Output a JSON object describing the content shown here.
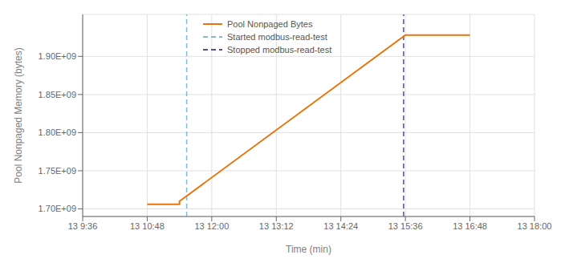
{
  "chart_data": {
    "type": "line",
    "xlabel": "Time (min)",
    "ylabel": "Pool Nonpaged Memory (bytes)",
    "x": [
      72,
      108,
      108,
      360,
      432
    ],
    "series": [
      {
        "name": "Pool Nonpaged Bytes",
        "color": "#E8750A",
        "line_style": "solid",
        "values": [
          1706000000,
          1706000000,
          1710000000,
          1928000000,
          1928000000
        ]
      }
    ],
    "vlines": [
      {
        "name": "Started modbus-read-test",
        "color": "#7FBCD2",
        "line_style": "dashed",
        "x": 116
      },
      {
        "name": "Stopped modbus-read-test",
        "color": "#5C4B9B",
        "line_style": "dashed",
        "x": 358
      }
    ],
    "xlim": [
      0,
      504
    ],
    "xticks": [
      {
        "value": 0,
        "label": "13 9:36"
      },
      {
        "value": 72,
        "label": "13 10:48"
      },
      {
        "value": 144,
        "label": "13 12:00"
      },
      {
        "value": 216,
        "label": "13 13:12"
      },
      {
        "value": 288,
        "label": "13 14:24"
      },
      {
        "value": 360,
        "label": "13 15:36"
      },
      {
        "value": 432,
        "label": "13 16:48"
      },
      {
        "value": 504,
        "label": "13 18:00"
      }
    ],
    "ylim": [
      1690000000,
      1955000000
    ],
    "yticks": [
      {
        "value": 1700000000,
        "label": "1.70E+09"
      },
      {
        "value": 1750000000,
        "label": "1.75E+09"
      },
      {
        "value": 1800000000,
        "label": "1.80E+09"
      },
      {
        "value": 1850000000,
        "label": "1.85E+09"
      },
      {
        "value": 1900000000,
        "label": "1.90E+09"
      }
    ],
    "grid": true,
    "legend": "upper left"
  }
}
